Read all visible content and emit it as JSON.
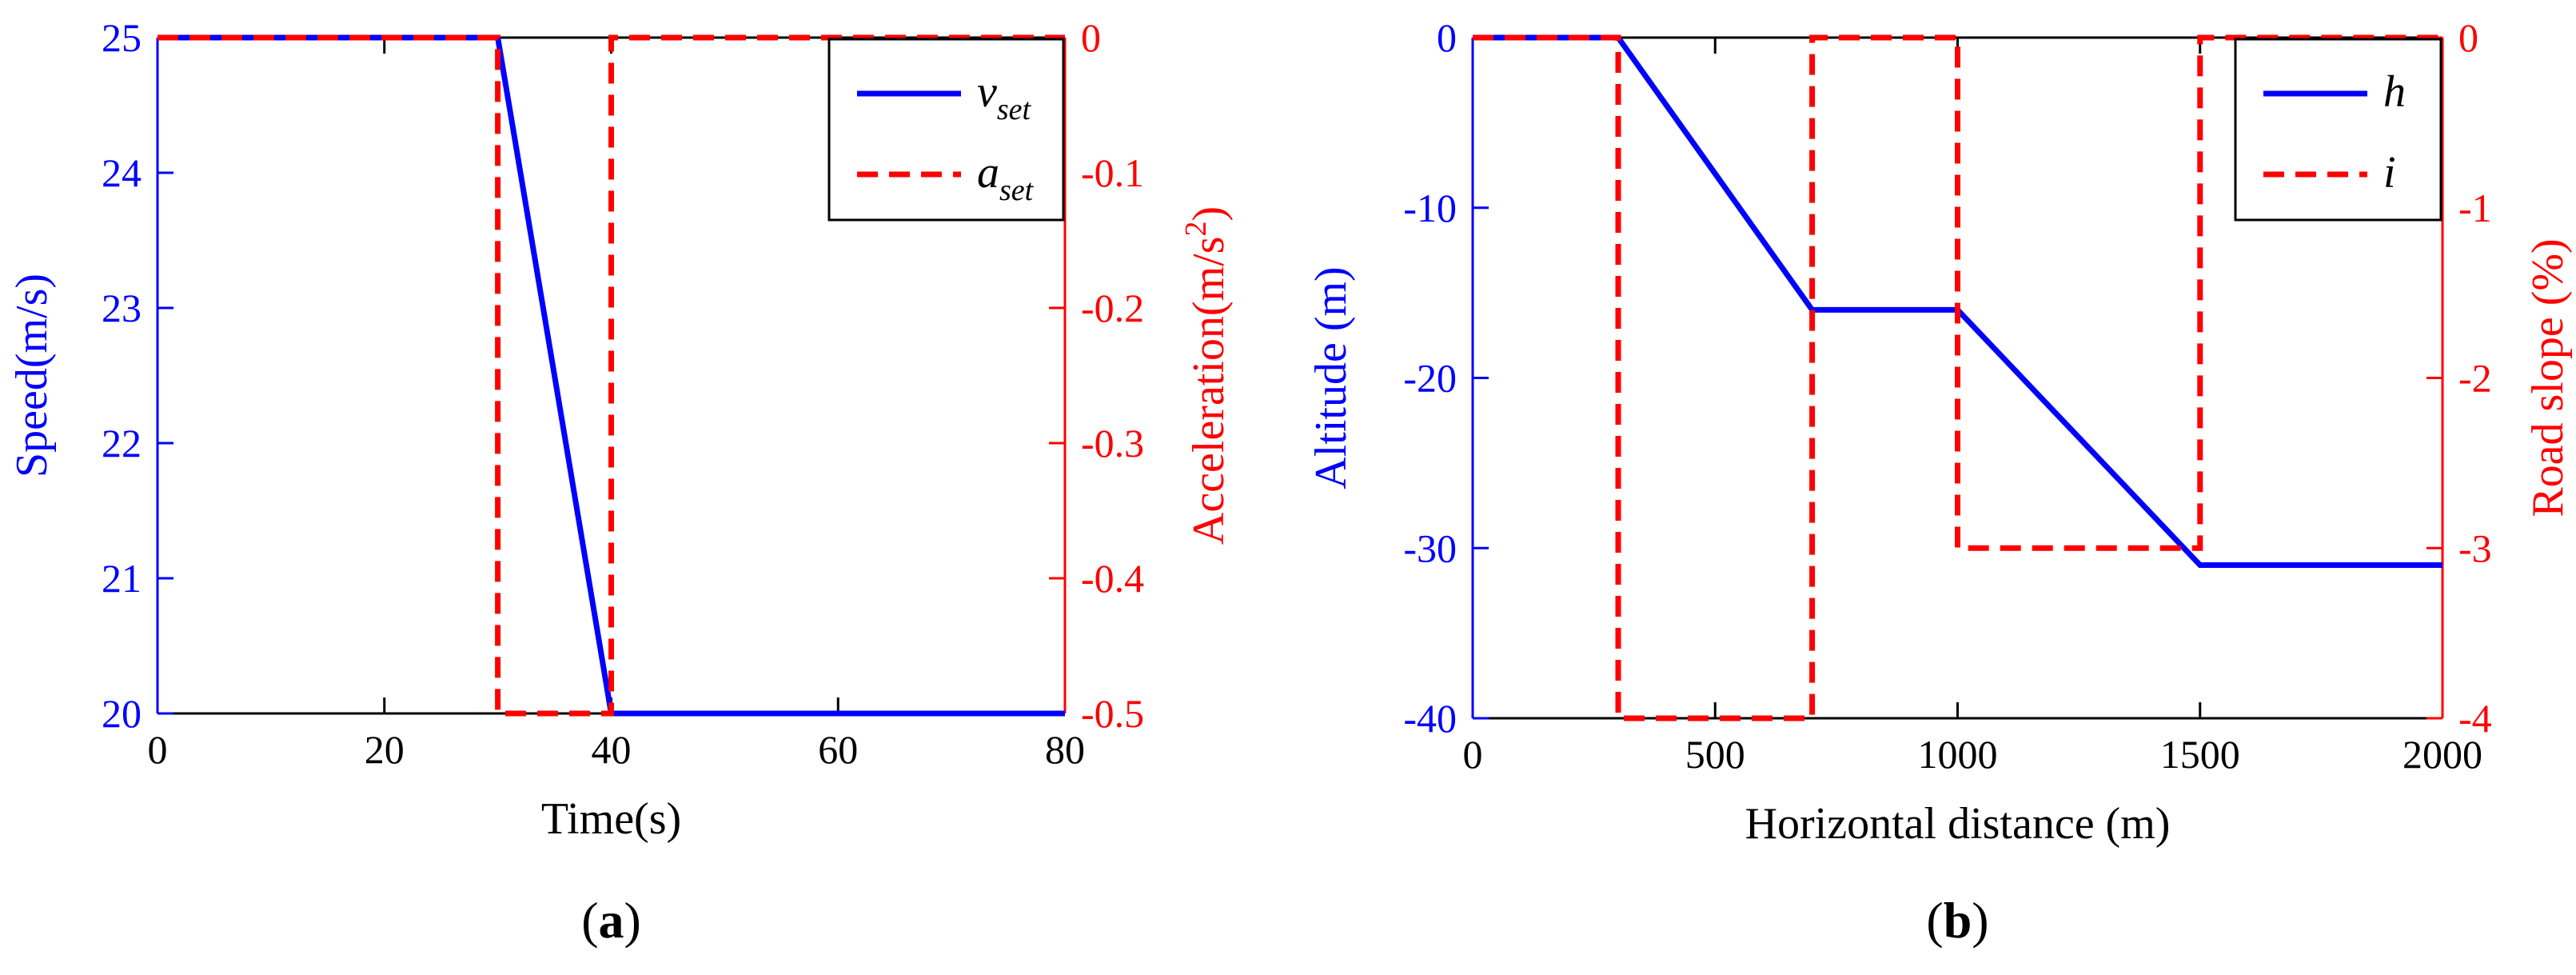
{
  "colors": {
    "left_axis": "#0000ff",
    "right_axis": "#ff0000",
    "axes": "#000000"
  },
  "chart_data": [
    {
      "panel_label": "(a)",
      "panel_letter": "a",
      "type": "line",
      "title": "",
      "xlabel": "Time(s)",
      "ylabel_left": "Speed(m/s)",
      "ylabel_right_base": "Acceleration(m/s",
      "ylabel_right_sup": "2",
      "ylabel_right_tail": ")",
      "xlim": [
        0,
        80
      ],
      "ylim_left": [
        20,
        25
      ],
      "ylim_right": [
        -0.5,
        0
      ],
      "xticks": [
        0,
        20,
        40,
        60,
        80
      ],
      "yticks_left": [
        20,
        21,
        22,
        23,
        24,
        25
      ],
      "yticks_right": [
        -0.5,
        -0.4,
        -0.3,
        -0.2,
        -0.1,
        0
      ],
      "ytick_labels_right": [
        "-0.5",
        "-0.4",
        "-0.3",
        "-0.2",
        "-0.1",
        "0"
      ],
      "grid": false,
      "legend_position": "top-right",
      "series": [
        {
          "name": "v",
          "subscript": "set",
          "axis": "left",
          "style": "solid",
          "color": "#0000ff",
          "x": [
            0,
            30,
            40,
            80
          ],
          "y": [
            25,
            25,
            20,
            20
          ]
        },
        {
          "name": "a",
          "subscript": "set",
          "axis": "right",
          "style": "dashed",
          "color": "#ff0000",
          "x": [
            0,
            30,
            30,
            40,
            40,
            80
          ],
          "y": [
            0,
            0,
            -0.5,
            -0.5,
            0,
            0
          ]
        }
      ]
    },
    {
      "panel_label": "(b)",
      "panel_letter": "b",
      "type": "line",
      "title": "",
      "xlabel": "Horizontal distance (m)",
      "ylabel_left": "Altitude (m)",
      "ylabel_right": "Road slope (%)",
      "xlim": [
        0,
        2000
      ],
      "ylim_left": [
        -40,
        0
      ],
      "ylim_right": [
        -4,
        0
      ],
      "xticks": [
        0,
        500,
        1000,
        1500,
        2000
      ],
      "yticks_left": [
        -40,
        -30,
        -20,
        -10,
        0
      ],
      "yticks_right": [
        -4,
        -3,
        -2,
        -1,
        0
      ],
      "grid": false,
      "legend_position": "top-right",
      "series": [
        {
          "name": "h",
          "axis": "left",
          "style": "solid",
          "color": "#0000ff",
          "x": [
            0,
            300,
            700,
            1000,
            1500,
            2000
          ],
          "y": [
            0,
            0,
            -16,
            -16,
            -31,
            -31
          ]
        },
        {
          "name": "i",
          "axis": "right",
          "style": "dashed",
          "color": "#ff0000",
          "x": [
            0,
            300,
            300,
            700,
            700,
            1000,
            1000,
            1500,
            1500,
            2000
          ],
          "y": [
            0,
            0,
            -4,
            -4,
            0,
            0,
            -3,
            -3,
            0,
            0
          ]
        }
      ]
    }
  ]
}
